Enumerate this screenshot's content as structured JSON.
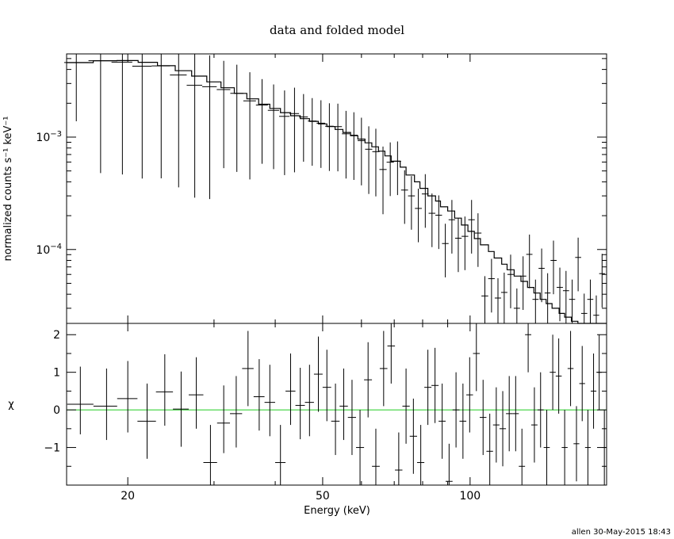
{
  "chart_data": [
    {
      "type": "step+errorbar",
      "panel": "top",
      "title": "data and folded model",
      "xlabel": "",
      "ylabel": "normalized counts s⁻¹ keV⁻¹",
      "x_scale": "log",
      "y_scale": "log",
      "xlim": [
        15,
        190
      ],
      "ylim": [
        2.2e-05,
        0.0055
      ],
      "y_tick_labels": [
        {
          "value": 0.001,
          "base": "10",
          "exp": "−3"
        },
        {
          "value": 0.0001,
          "base": "10",
          "exp": "−4"
        }
      ],
      "data": [
        [
          15.7,
          0.00461,
          0.7
        ],
        [
          17.6,
          0.00478,
          0.9
        ],
        [
          19.5,
          0.00465,
          0.9
        ],
        [
          21.4,
          0.00428,
          0.9
        ],
        [
          23.4,
          0.0043,
          0.9
        ],
        [
          25.4,
          0.00357,
          0.9
        ],
        [
          27.4,
          0.00289,
          0.9
        ],
        [
          29.4,
          0.00281,
          0.9
        ],
        [
          31.4,
          0.00265,
          0.8
        ],
        [
          33.4,
          0.00245,
          0.8
        ],
        [
          35.5,
          0.0021,
          0.8
        ],
        [
          37.6,
          0.00193,
          0.7
        ],
        [
          39.7,
          0.00173,
          0.7
        ],
        [
          41.8,
          0.00153,
          0.7
        ],
        [
          43.8,
          0.00162,
          0.7
        ],
        [
          45.7,
          0.00151,
          0.6
        ],
        [
          47.6,
          0.00139,
          0.6
        ],
        [
          49.6,
          0.00133,
          0.6
        ],
        [
          51.6,
          0.00125,
          0.6
        ],
        [
          53.7,
          0.00124,
          0.6
        ],
        [
          55.8,
          0.00107,
          0.6
        ],
        [
          57.9,
          0.00104,
          0.6
        ],
        [
          60.0,
          0.00093,
          0.6
        ],
        [
          62.1,
          0.00078,
          0.6
        ],
        [
          64.2,
          0.000742,
          0.6
        ],
        [
          66.4,
          0.000515,
          0.6
        ],
        [
          68.7,
          0.000598,
          0.5
        ],
        [
          71.1,
          0.00061,
          0.5
        ],
        [
          73.5,
          0.000338,
          0.5
        ],
        [
          75.9,
          0.0003,
          0.5
        ],
        [
          78.4,
          0.000232,
          0.5
        ],
        [
          81.0,
          0.000312,
          0.5
        ],
        [
          83.6,
          0.00021,
          0.5
        ],
        [
          86.3,
          0.000202,
          0.5
        ],
        [
          89.0,
          0.000113,
          0.5
        ],
        [
          91.8,
          0.000184,
          0.5
        ],
        [
          94.6,
          0.000126,
          0.5
        ],
        [
          97.6,
          0.000131,
          0.5
        ],
        [
          100.7,
          0.000184,
          0.5
        ],
        [
          103.8,
          0.00014,
          0.5
        ],
        [
          107.2,
          3.86e-05,
          0.5
        ],
        [
          110.6,
          5.5e-05,
          0.5
        ],
        [
          114.0,
          3.7e-05,
          0.5
        ],
        [
          117.4,
          4.15e-05,
          0.5
        ],
        [
          121.0,
          6e-05,
          0.5
        ],
        [
          124.6,
          3e-05,
          0.5
        ],
        [
          128.3,
          5.8e-05,
          0.5
        ],
        [
          132.2,
          9.05e-05,
          0.5
        ],
        [
          136.0,
          3.6e-05,
          0.5
        ],
        [
          140.0,
          6.8e-05,
          0.5
        ],
        [
          144.0,
          4.1e-05,
          0.5
        ],
        [
          148.0,
          8e-05,
          0.5
        ],
        [
          152.5,
          4.6e-05,
          0.5
        ],
        [
          157.0,
          4.3e-05,
          0.5
        ],
        [
          161.6,
          3.6e-05,
          0.5
        ],
        [
          166.2,
          8.5e-05,
          0.5
        ],
        [
          171.0,
          2.7e-05,
          0.5
        ],
        [
          176.0,
          3.6e-05,
          0.5
        ],
        [
          181.0,
          2.6e-05,
          0.5
        ],
        [
          186.0,
          6.1e-05,
          0.5
        ]
      ],
      "data_columns": [
        "energy_keV",
        "counts",
        "relative_error"
      ],
      "model_steps": [
        [
          15,
          0.0046
        ],
        [
          17,
          0.00478
        ],
        [
          19,
          0.0048
        ],
        [
          21,
          0.00463
        ],
        [
          23,
          0.00432
        ],
        [
          25,
          0.0039
        ],
        [
          27,
          0.00349
        ],
        [
          29,
          0.0031
        ],
        [
          31,
          0.00275
        ],
        [
          33,
          0.00245
        ],
        [
          35,
          0.00219
        ],
        [
          37,
          0.00196
        ],
        [
          39,
          0.0018
        ],
        [
          41,
          0.00165
        ],
        [
          43,
          0.00155
        ],
        [
          45,
          0.00146
        ],
        [
          47,
          0.00138
        ],
        [
          49,
          0.00131
        ],
        [
          51,
          0.00124
        ],
        [
          53,
          0.00117
        ],
        [
          55,
          0.0011
        ],
        [
          57,
          0.00103
        ],
        [
          59,
          0.00096
        ],
        [
          61,
          0.00089
        ],
        [
          63,
          0.00082
        ],
        [
          65,
          0.00075
        ],
        [
          67,
          0.00068
        ],
        [
          69,
          0.00061
        ],
        [
          72,
          0.00054
        ],
        [
          74,
          0.00046
        ],
        [
          77,
          0.0004
        ],
        [
          79,
          0.00035
        ],
        [
          82,
          0.0003
        ],
        [
          85,
          0.00027
        ],
        [
          87,
          0.00024
        ],
        [
          90,
          0.00022
        ],
        [
          93,
          0.00019
        ],
        [
          96,
          0.000165
        ],
        [
          99,
          0.000145
        ],
        [
          102,
          0.000125
        ],
        [
          105,
          0.00011
        ],
        [
          109,
          9.6e-05
        ],
        [
          112,
          8.4e-05
        ],
        [
          116,
          7.4e-05
        ],
        [
          119,
          6.6e-05
        ],
        [
          123,
          5.8e-05
        ],
        [
          127,
          5.2e-05
        ],
        [
          131,
          4.6e-05
        ],
        [
          135,
          4.1e-05
        ],
        [
          139,
          3.6e-05
        ],
        [
          143,
          3.3e-05
        ],
        [
          147,
          3e-05
        ],
        [
          152,
          2.7e-05
        ],
        [
          156,
          2.5e-05
        ],
        [
          161,
          2.3e-05
        ],
        [
          166,
          2.2e-05
        ],
        [
          171,
          2.2e-05
        ],
        [
          176,
          2.2e-05
        ],
        [
          182,
          2.2e-05
        ],
        [
          190,
          2.2e-05
        ]
      ],
      "colors": {
        "data": "#000000",
        "model": "#000000"
      }
    },
    {
      "type": "errorbar",
      "panel": "bottom",
      "xlabel": "Energy (keV)",
      "ylabel": "χ",
      "x_scale": "log",
      "xlim": [
        15,
        190
      ],
      "ylim": [
        -2.0,
        2.3
      ],
      "y_ticks": [
        -1,
        0,
        1,
        2
      ],
      "x_ticks": [
        20,
        50,
        100
      ],
      "reference_line": {
        "y": 0,
        "color": "#22cc22"
      },
      "data": [
        [
          16.0,
          0.15,
          1.0,
          0.8
        ],
        [
          18.1,
          0.1,
          1.0,
          0.9
        ],
        [
          20.0,
          0.3,
          1.0,
          0.9
        ],
        [
          21.9,
          -0.3,
          1.0,
          1.0
        ],
        [
          23.8,
          0.48,
          1.0,
          0.9
        ],
        [
          25.7,
          0.02,
          1.0,
          1.0
        ],
        [
          27.6,
          0.4,
          1.0,
          0.9
        ],
        [
          29.5,
          -1.4,
          1.0,
          1.0
        ],
        [
          31.4,
          -0.35,
          1.0,
          0.8
        ],
        [
          33.3,
          -0.1,
          1.0,
          0.9
        ],
        [
          35.2,
          1.1,
          1.0,
          1.0
        ],
        [
          37.1,
          0.35,
          1.0,
          0.9
        ],
        [
          39.0,
          0.2,
          1.0,
          0.9
        ],
        [
          41.0,
          -1.4,
          1.0,
          1.0
        ],
        [
          43.0,
          0.5,
          1.0,
          0.9
        ],
        [
          45.0,
          0.12,
          1.0,
          0.9
        ],
        [
          47.0,
          0.2,
          1.0,
          0.9
        ],
        [
          49.0,
          0.95,
          1.0,
          1.0
        ],
        [
          51.0,
          0.6,
          1.0,
          0.9
        ],
        [
          53.1,
          -0.3,
          1.0,
          0.9
        ],
        [
          55.2,
          0.1,
          1.0,
          0.9
        ],
        [
          57.4,
          -0.2,
          1.0,
          1.0
        ],
        [
          59.6,
          -1.0,
          1.0,
          1.0
        ],
        [
          61.9,
          0.8,
          1.0,
          1.0
        ],
        [
          64.2,
          -1.5,
          1.0,
          1.0
        ],
        [
          66.6,
          1.1,
          1.0,
          1.0
        ],
        [
          69.0,
          1.7,
          1.0,
          1.0
        ],
        [
          71.5,
          -1.6,
          1.0,
          1.0
        ],
        [
          74.0,
          0.1,
          1.0,
          1.0
        ],
        [
          76.6,
          -0.7,
          1.0,
          1.0
        ],
        [
          79.3,
          -1.4,
          1.0,
          1.0
        ],
        [
          82.0,
          0.6,
          1.0,
          1.0
        ],
        [
          84.8,
          0.65,
          1.0,
          1.0
        ],
        [
          87.7,
          -0.3,
          1.0,
          1.0
        ],
        [
          90.6,
          -1.9,
          1.0,
          1.0
        ],
        [
          93.6,
          0.0,
          1.0,
          1.0
        ],
        [
          96.7,
          -0.3,
          1.0,
          1.0
        ],
        [
          99.8,
          0.4,
          1.0,
          1.0
        ],
        [
          103.0,
          1.5,
          1.0,
          1.0
        ],
        [
          106.3,
          -0.2,
          1.0,
          1.0
        ],
        [
          109.7,
          -1.1,
          1.0,
          1.0
        ],
        [
          113.1,
          -0.4,
          1.0,
          1.0
        ],
        [
          116.6,
          -0.5,
          1.0,
          1.0
        ],
        [
          120.2,
          -0.1,
          1.0,
          1.0
        ],
        [
          123.9,
          -0.1,
          1.0,
          1.0
        ],
        [
          127.6,
          -1.5,
          1.0,
          1.0
        ],
        [
          131.4,
          2.0,
          1.0,
          1.0
        ],
        [
          135.3,
          -0.4,
          1.0,
          1.0
        ],
        [
          139.3,
          0.0,
          1.0,
          1.0
        ],
        [
          143.4,
          -1.0,
          1.0,
          1.0
        ],
        [
          147.5,
          1.0,
          1.0,
          1.0
        ],
        [
          151.7,
          0.9,
          1.0,
          1.0
        ],
        [
          156.0,
          -1.0,
          1.0,
          1.0
        ],
        [
          160.4,
          1.1,
          1.0,
          1.0
        ],
        [
          164.9,
          -0.9,
          1.0,
          1.0
        ],
        [
          169.4,
          0.7,
          1.0,
          1.0
        ],
        [
          174.0,
          -1.0,
          1.0,
          1.0
        ],
        [
          178.7,
          0.5,
          1.0,
          1.0
        ],
        [
          183.5,
          1.0,
          1.0,
          1.0
        ],
        [
          188.0,
          -1.0,
          1.0,
          1.0
        ]
      ],
      "data_columns": [
        "energy_keV",
        "chi",
        "err_up",
        "err_down"
      ],
      "colors": {
        "data": "#000000"
      }
    }
  ],
  "footer": {
    "stamp": "allen 30-May-2015 18:43"
  }
}
